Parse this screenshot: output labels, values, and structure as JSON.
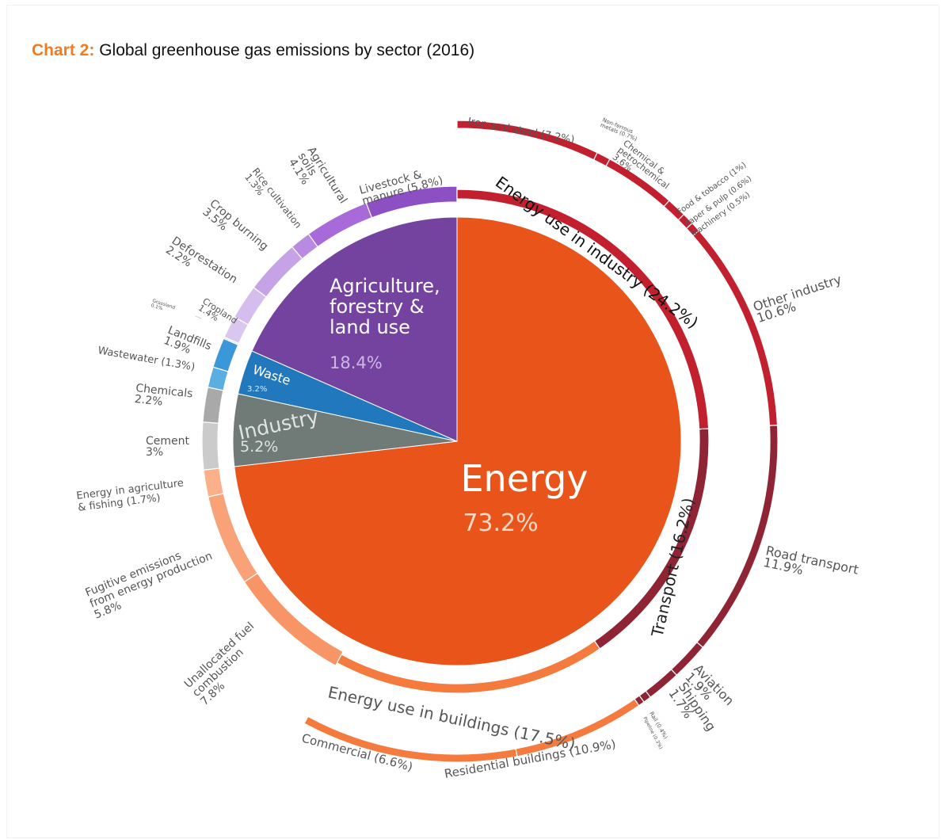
{
  "header": {
    "prefix": "Chart 2:",
    "title": "Global greenhouse gas emissions by sector (2016)"
  },
  "chart_data": {
    "type": "pie",
    "title": "Global greenhouse gas emissions by sector (2016)",
    "sectors": [
      {
        "name": "Energy",
        "value": 73.2,
        "label": "73.2%",
        "color": "#e8541a"
      },
      {
        "name": "Industry",
        "value": 5.2,
        "label": "5.2%",
        "color": "#707b77"
      },
      {
        "name": "Waste",
        "value": 3.2,
        "label": "3.2%",
        "color": "#2178bd"
      },
      {
        "name": "Agriculture, forestry & land use",
        "value": 18.4,
        "label": "18.4%",
        "lines": [
          "Agriculture,",
          "forestry &",
          "land use"
        ],
        "color": "#7443a0"
      }
    ],
    "subsectors": [
      {
        "name": "Livestock & manure",
        "value": 5.8,
        "lines": [
          "Livestock &",
          "manure (5.8%)"
        ],
        "color": "#8d4fc4"
      },
      {
        "name": "Agricultural soils",
        "value": 4.1,
        "lines": [
          "Agricultural",
          "soils",
          "4.1%"
        ],
        "color": "#a86ad8"
      },
      {
        "name": "Rice cultivation",
        "value": 1.3,
        "lines": [
          "Rice cultivation",
          "1.3%"
        ],
        "color": "#b98ae1"
      },
      {
        "name": "Crop burning",
        "value": 3.5,
        "lines": [
          "Crop burning",
          "3.5%"
        ],
        "color": "#c6a2e6"
      },
      {
        "name": "Deforestation",
        "value": 2.2,
        "lines": [
          "Deforestation",
          "2.2%"
        ],
        "color": "#d5bdee"
      },
      {
        "name": "Cropland",
        "value": 1.4,
        "lines": [
          "Cropland",
          "1.4%"
        ],
        "color": "#dac7f0"
      },
      {
        "name": "Grassland",
        "value": 0.1,
        "lines": [
          "Grassland",
          "0.1%"
        ],
        "color": "#e2d5f3"
      },
      {
        "name": "Landfills",
        "value": 1.9,
        "lines": [
          "Landfills",
          "1.9%"
        ],
        "color": "#3a98d8"
      },
      {
        "name": "Wastewater",
        "value": 1.3,
        "lines": [
          "Wastewater (1.3%)"
        ],
        "color": "#5aaee2"
      },
      {
        "name": "Chemicals",
        "value": 2.2,
        "lines": [
          "Chemicals",
          "2.2%"
        ],
        "color": "#a9a9a9"
      },
      {
        "name": "Cement",
        "value": 3,
        "lines": [
          "Cement",
          "3%"
        ],
        "color": "#cbcbcb"
      },
      {
        "name": "Energy in agriculture & fishing",
        "value": 1.7,
        "lines": [
          "Energy in agriculture",
          "& fishing (1.7%)"
        ],
        "color": "#fbb08a"
      },
      {
        "name": "Fugitive emissions from energy production",
        "value": 5.8,
        "lines": [
          "Fugitive emissions",
          "from energy production",
          "5.8%"
        ],
        "color": "#f9a177"
      },
      {
        "name": "Unallocated fuel combustion",
        "value": 7.8,
        "lines": [
          "Unallocated fuel",
          "combustion",
          "7.8%"
        ],
        "color": "#f79566"
      }
    ],
    "outer_groups": [
      {
        "name": "Energy use in buildings",
        "value": 17.5,
        "label": "Energy use in buildings (17.5%)",
        "color": "#f47a3e",
        "children": [
          {
            "name": "Commercial",
            "value": 6.6,
            "label": "Commercial (6.6%)"
          },
          {
            "name": "Residential buildings",
            "value": 10.9,
            "label": "Residential buildings (10.9%)"
          }
        ]
      },
      {
        "name": "Transport",
        "value": 16.2,
        "label": "Transport (16.2%)",
        "color": "#8e2434",
        "children": [
          {
            "name": "Road transport",
            "value": 11.9,
            "lines": [
              "Road transport",
              "11.9%"
            ]
          },
          {
            "name": "Aviation",
            "value": 1.9,
            "lines": [
              "Aviation",
              "1.9%"
            ]
          },
          {
            "name": "Shipping",
            "value": 1.7,
            "lines": [
              "Shipping",
              "1.7%"
            ]
          },
          {
            "name": "Rail",
            "value": 0.4,
            "lines": [
              "Rail (0.4%)"
            ]
          },
          {
            "name": "Pipeline",
            "value": 0.3,
            "lines": [
              "Pipeline (0.3%)"
            ]
          }
        ]
      },
      {
        "name": "Energy use in industry",
        "value": 24.2,
        "label": "Energy use in industry (24.2%)",
        "color": "#c21f2f",
        "children": [
          {
            "name": "Iron and steel",
            "value": 7.2,
            "lines": [
              "Iron and steel (7.2%)"
            ]
          },
          {
            "name": "Non-ferrous metals",
            "value": 0.7,
            "lines": [
              "Non-ferrous",
              "metals (0.7%)"
            ]
          },
          {
            "name": "Chemical & petrochemical",
            "value": 3.6,
            "lines": [
              "Chemical &",
              "petrochemical",
              "3.6%"
            ]
          },
          {
            "name": "Food & tobacco",
            "value": 1,
            "lines": [
              "Food & tobacco (1%)"
            ]
          },
          {
            "name": "Paper & pulp",
            "value": 0.6,
            "lines": [
              "Paper & pulp (0.6%)"
            ]
          },
          {
            "name": "Machinery",
            "value": 0.5,
            "lines": [
              "Machinery (0.5%)"
            ]
          },
          {
            "name": "Other industry",
            "value": 10.6,
            "lines": [
              "Other industry",
              "10.6%"
            ]
          }
        ]
      }
    ]
  }
}
